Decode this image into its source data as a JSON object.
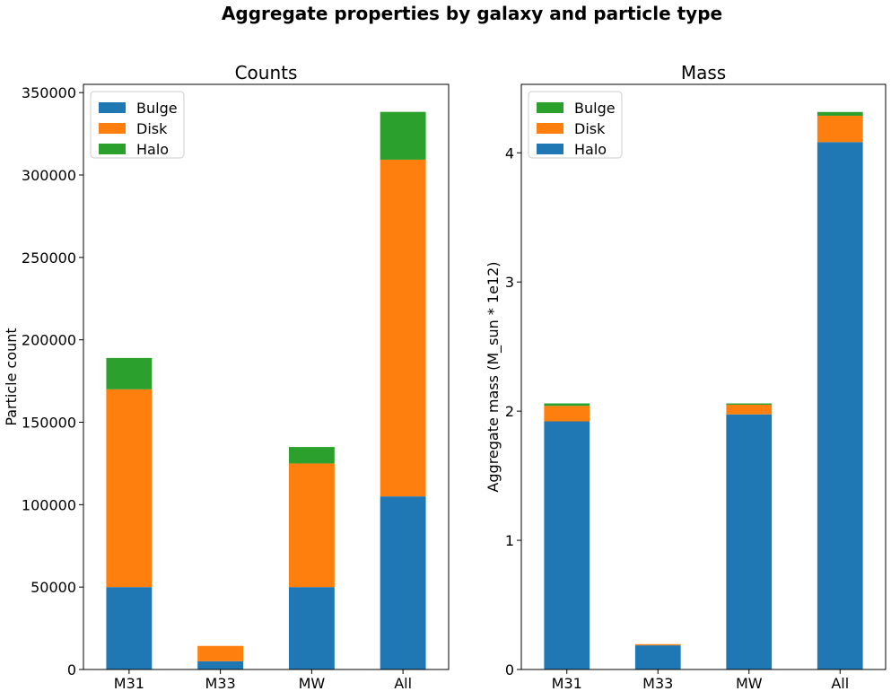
{
  "suptitle": "Aggregate properties by galaxy and particle type",
  "colors": {
    "Bulge": "#1f77b4",
    "Disk": "#ff7f0e",
    "Halo": "#2ca02c"
  },
  "chart_data": [
    {
      "type": "bar",
      "stacked": true,
      "title": "Counts",
      "xlabel": "",
      "ylabel": "Particle count",
      "ylim": [
        0,
        355000
      ],
      "yticks": [
        0,
        50000,
        100000,
        150000,
        200000,
        250000,
        300000,
        350000
      ],
      "ytick_labels": [
        "0",
        "50000",
        "100000",
        "150000",
        "200000",
        "250000",
        "300000",
        "350000"
      ],
      "categories": [
        "M31",
        "M33",
        "MW",
        "All"
      ],
      "legend_position": "top-left",
      "stack_order": [
        "Bulge",
        "Disk",
        "Halo"
      ],
      "series": [
        {
          "name": "Bulge",
          "color": "#1f77b4",
          "values": [
            50000,
            5000,
            50000,
            105000
          ]
        },
        {
          "name": "Disk",
          "color": "#ff7f0e",
          "values": [
            120000,
            9300,
            75000,
            204300
          ]
        },
        {
          "name": "Halo",
          "color": "#2ca02c",
          "values": [
            19000,
            0,
            10000,
            29000
          ]
        }
      ]
    },
    {
      "type": "bar",
      "stacked": true,
      "title": "Mass",
      "xlabel": "",
      "ylabel": "Aggregate mass (M_sun * 1e12)",
      "ylim": [
        0,
        4.53
      ],
      "yticks": [
        0,
        1,
        2,
        3,
        4
      ],
      "ytick_labels": [
        "0",
        "1",
        "2",
        "3",
        "4"
      ],
      "categories": [
        "M31",
        "M33",
        "MW",
        "All"
      ],
      "legend_position": "top-left",
      "legend_order": [
        "Bulge",
        "Disk",
        "Halo"
      ],
      "stack_order": [
        "Halo",
        "Disk",
        "Bulge"
      ],
      "series": [
        {
          "name": "Halo",
          "color": "#1f77b4",
          "values": [
            1.921,
            0.187,
            1.975,
            4.083
          ]
        },
        {
          "name": "Disk",
          "color": "#ff7f0e",
          "values": [
            0.12,
            0.009,
            0.075,
            0.204
          ]
        },
        {
          "name": "Bulge",
          "color": "#2ca02c",
          "values": [
            0.019,
            0.0,
            0.01,
            0.029
          ]
        }
      ]
    }
  ]
}
